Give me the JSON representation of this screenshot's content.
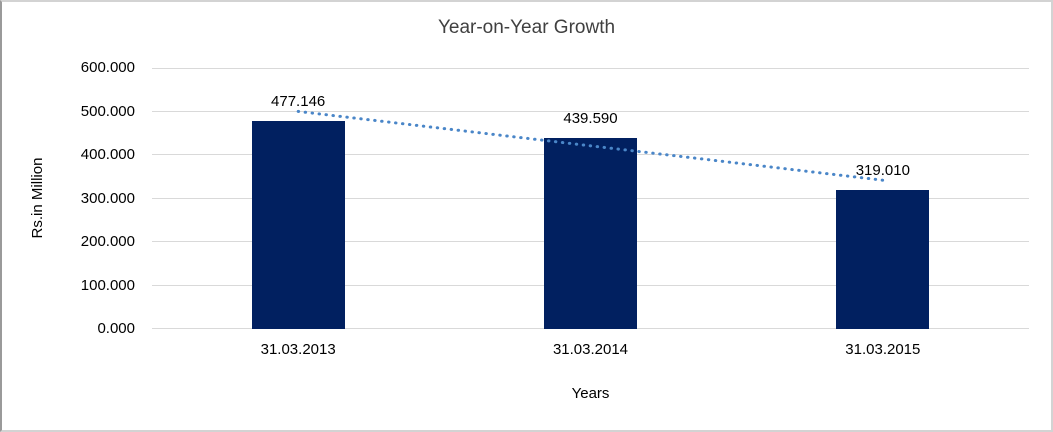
{
  "window": {
    "background_color": "#ffffff",
    "border_color": "#d3d3d3"
  },
  "chart_data": {
    "type": "bar",
    "title": "Year-on-Year Growth",
    "categories": [
      "31.03.2013",
      "31.03.2014",
      "31.03.2015"
    ],
    "values": [
      477.146,
      439.59,
      319.01
    ],
    "data_labels": [
      "477.146",
      "439.590",
      "319.010"
    ],
    "xlabel": "Years",
    "ylabel": "Rs.in Million",
    "ylim": [
      0,
      600
    ],
    "ytick_step": 100,
    "ytick_labels": [
      "0.000",
      "100.000",
      "200.000",
      "300.000",
      "400.000",
      "500.000",
      "600.000"
    ],
    "grid": true,
    "legend": "none",
    "bar_color": "#012060",
    "gridline_color": "#d9d9d9",
    "title_color": "#404040",
    "text_color": "#000000",
    "trendline": {
      "type": "linear",
      "style": "dotted",
      "color": "#4a86c8",
      "spans": "first-to-last-category"
    }
  }
}
